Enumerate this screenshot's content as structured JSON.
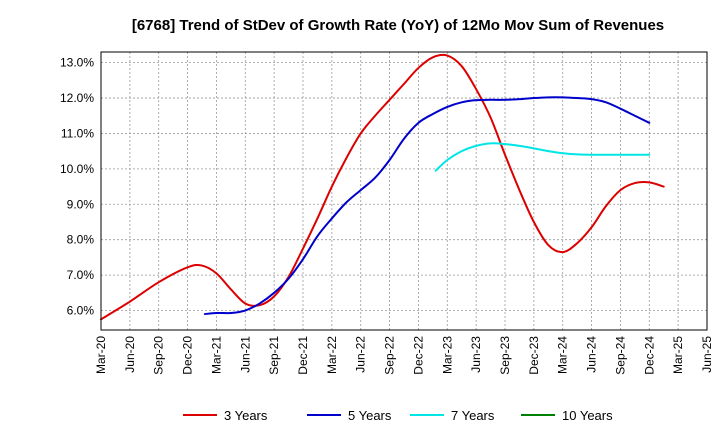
{
  "chart_data": {
    "type": "line",
    "title": "[6768]  Trend of StDev of Growth Rate (YoY) of 12Mo Mov Sum of Revenues",
    "xlabel": "",
    "ylabel": "",
    "ylim": [
      5.45,
      13.3
    ],
    "grid": true,
    "legend_position": "bottom",
    "x_tick_labels": [
      "Mar-20",
      "Jun-20",
      "Sep-20",
      "Dec-20",
      "Mar-21",
      "Jun-21",
      "Sep-21",
      "Dec-21",
      "Mar-22",
      "Jun-22",
      "Sep-22",
      "Dec-22",
      "Mar-23",
      "Jun-23",
      "Sep-23",
      "Dec-23",
      "Mar-24",
      "Jun-24",
      "Sep-24",
      "Dec-24",
      "Mar-25",
      "Jun-25"
    ],
    "y_ticks": [
      6.0,
      7.0,
      8.0,
      9.0,
      10.0,
      11.0,
      12.0,
      13.0
    ],
    "y_tick_labels": [
      "6.0%",
      "7.0%",
      "8.0%",
      "9.0%",
      "10.0%",
      "11.0%",
      "12.0%",
      "13.0%"
    ],
    "series": [
      {
        "name": "3 Years",
        "color": "#dd0000",
        "points": [
          [
            0,
            5.75
          ],
          [
            1,
            6.25
          ],
          [
            2,
            6.8
          ],
          [
            3,
            7.22
          ],
          [
            3.5,
            7.27
          ],
          [
            4,
            7.05
          ],
          [
            4.5,
            6.6
          ],
          [
            5,
            6.2
          ],
          [
            5.5,
            6.15
          ],
          [
            6,
            6.4
          ],
          [
            6.5,
            6.95
          ],
          [
            7,
            7.75
          ],
          [
            7.5,
            8.6
          ],
          [
            8,
            9.5
          ],
          [
            8.5,
            10.3
          ],
          [
            9,
            11.0
          ],
          [
            9.5,
            11.5
          ],
          [
            10,
            11.95
          ],
          [
            10.5,
            12.4
          ],
          [
            11,
            12.85
          ],
          [
            11.5,
            13.15
          ],
          [
            12,
            13.2
          ],
          [
            12.5,
            12.9
          ],
          [
            13,
            12.25
          ],
          [
            13.5,
            11.45
          ],
          [
            14,
            10.4
          ],
          [
            14.5,
            9.4
          ],
          [
            15,
            8.5
          ],
          [
            15.5,
            7.85
          ],
          [
            16,
            7.65
          ],
          [
            16.5,
            7.9
          ],
          [
            17,
            8.35
          ],
          [
            17.5,
            8.95
          ],
          [
            18,
            9.4
          ],
          [
            18.5,
            9.6
          ],
          [
            19,
            9.62
          ],
          [
            19.5,
            9.5
          ]
        ]
      },
      {
        "name": "5 Years",
        "color": "#0000cc",
        "points": [
          [
            3.6,
            5.9
          ],
          [
            4,
            5.93
          ],
          [
            4.5,
            5.93
          ],
          [
            5,
            6.0
          ],
          [
            5.5,
            6.2
          ],
          [
            6,
            6.5
          ],
          [
            6.5,
            6.9
          ],
          [
            7,
            7.45
          ],
          [
            7.5,
            8.1
          ],
          [
            8,
            8.6
          ],
          [
            8.5,
            9.05
          ],
          [
            9,
            9.4
          ],
          [
            9.5,
            9.75
          ],
          [
            10,
            10.25
          ],
          [
            10.5,
            10.85
          ],
          [
            11,
            11.3
          ],
          [
            11.5,
            11.55
          ],
          [
            12,
            11.75
          ],
          [
            12.5,
            11.88
          ],
          [
            13,
            11.94
          ],
          [
            13.5,
            11.95
          ],
          [
            14,
            11.95
          ],
          [
            14.5,
            11.97
          ],
          [
            15,
            12.0
          ],
          [
            15.5,
            12.02
          ],
          [
            16,
            12.02
          ],
          [
            16.5,
            12.0
          ],
          [
            17,
            11.97
          ],
          [
            17.5,
            11.88
          ],
          [
            18,
            11.7
          ],
          [
            18.5,
            11.5
          ],
          [
            19,
            11.3
          ]
        ]
      },
      {
        "name": "7 Years",
        "color": "#00e5e5",
        "points": [
          [
            11.6,
            9.95
          ],
          [
            12,
            10.25
          ],
          [
            12.5,
            10.5
          ],
          [
            13,
            10.65
          ],
          [
            13.5,
            10.72
          ],
          [
            14,
            10.7
          ],
          [
            14.5,
            10.65
          ],
          [
            15,
            10.58
          ],
          [
            15.5,
            10.5
          ],
          [
            16,
            10.44
          ],
          [
            16.5,
            10.41
          ],
          [
            17,
            10.4
          ],
          [
            17.5,
            10.4
          ],
          [
            18,
            10.4
          ],
          [
            18.5,
            10.4
          ],
          [
            19,
            10.4
          ]
        ]
      },
      {
        "name": "10 Years",
        "color": "#008000",
        "points": []
      }
    ]
  }
}
